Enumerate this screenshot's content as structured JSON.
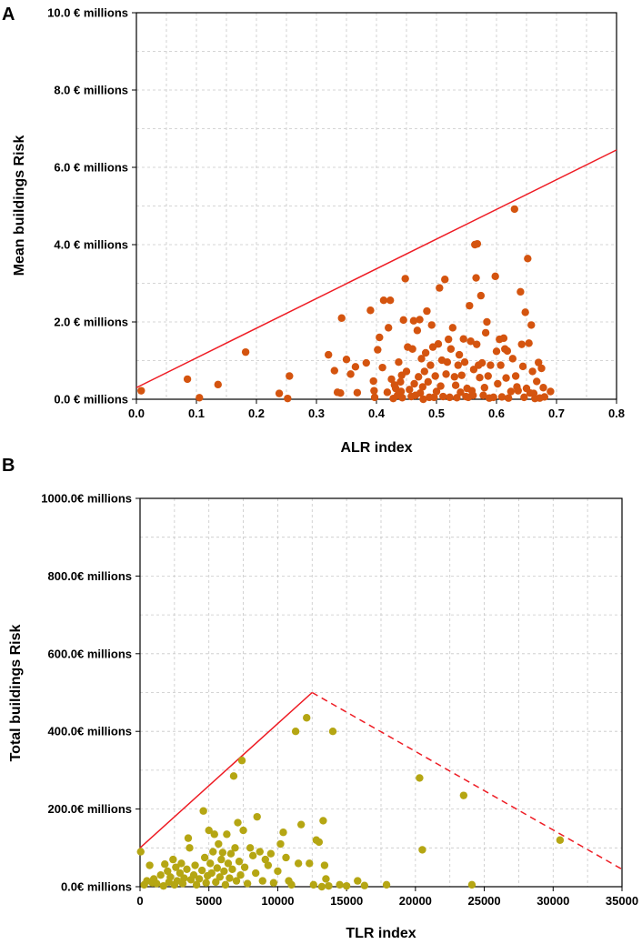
{
  "colors": {
    "seriesA": "#d4540f",
    "seriesB": "#b5a613",
    "line": "#ee1c24"
  },
  "chart_data": [
    {
      "panel": "A",
      "type": "scatter",
      "title": "",
      "xlabel": "ALR index",
      "ylabel": "Mean buildings Risk",
      "xlim": [
        0.0,
        0.8
      ],
      "ylim": [
        0.0,
        10.0
      ],
      "xticks": [
        0.0,
        0.1,
        0.2,
        0.3,
        0.4,
        0.5,
        0.6,
        0.7,
        0.8
      ],
      "xtick_labels": [
        "0.0",
        "0.1",
        "0.2",
        "0.3",
        "0.4",
        "0.5",
        "0.6",
        "0.7",
        "0.8"
      ],
      "yticks": [
        0,
        2,
        4,
        6,
        8,
        10
      ],
      "ytick_labels": [
        "0.0  € millions",
        "2.0  € millions",
        "4.0  € millions",
        "6.0  € millions",
        "8.0  € millions",
        "10.0  € millions"
      ],
      "grid": true,
      "lines": [
        {
          "name": "upper envelope",
          "style": "solid",
          "points": [
            [
              0.0,
              0.3
            ],
            [
              0.8,
              6.45
            ]
          ]
        }
      ],
      "points": [
        [
          0.008,
          0.22
        ],
        [
          0.085,
          0.52
        ],
        [
          0.105,
          0.04
        ],
        [
          0.136,
          0.38
        ],
        [
          0.182,
          1.22
        ],
        [
          0.238,
          0.15
        ],
        [
          0.252,
          0.02
        ],
        [
          0.255,
          0.6
        ],
        [
          0.32,
          1.15
        ],
        [
          0.33,
          0.74
        ],
        [
          0.335,
          0.18
        ],
        [
          0.34,
          0.16
        ],
        [
          0.342,
          2.1
        ],
        [
          0.35,
          1.03
        ],
        [
          0.357,
          0.65
        ],
        [
          0.365,
          0.84
        ],
        [
          0.368,
          0.17
        ],
        [
          0.383,
          0.94
        ],
        [
          0.39,
          2.3
        ],
        [
          0.395,
          0.47
        ],
        [
          0.396,
          0.22
        ],
        [
          0.397,
          0.05
        ],
        [
          0.402,
          1.28
        ],
        [
          0.405,
          1.6
        ],
        [
          0.41,
          0.82
        ],
        [
          0.412,
          2.56
        ],
        [
          0.418,
          0.18
        ],
        [
          0.42,
          1.85
        ],
        [
          0.423,
          2.56
        ],
        [
          0.425,
          0.52
        ],
        [
          0.428,
          0.02
        ],
        [
          0.43,
          0.37
        ],
        [
          0.432,
          0.28
        ],
        [
          0.435,
          0.1
        ],
        [
          0.437,
          0.96
        ],
        [
          0.44,
          0.45
        ],
        [
          0.441,
          0.2
        ],
        [
          0.442,
          0.62
        ],
        [
          0.443,
          0.04
        ],
        [
          0.445,
          2.05
        ],
        [
          0.448,
          3.12
        ],
        [
          0.45,
          0.72
        ],
        [
          0.452,
          1.35
        ],
        [
          0.455,
          0.25
        ],
        [
          0.458,
          0.07
        ],
        [
          0.46,
          1.3
        ],
        [
          0.462,
          2.03
        ],
        [
          0.463,
          0.4
        ],
        [
          0.465,
          0.1
        ],
        [
          0.468,
          1.78
        ],
        [
          0.47,
          0.58
        ],
        [
          0.472,
          2.06
        ],
        [
          0.473,
          0.16
        ],
        [
          0.475,
          1.05
        ],
        [
          0.477,
          0.32
        ],
        [
          0.478,
          0.0
        ],
        [
          0.48,
          0.72
        ],
        [
          0.482,
          1.2
        ],
        [
          0.484,
          2.28
        ],
        [
          0.486,
          0.45
        ],
        [
          0.488,
          0.05
        ],
        [
          0.49,
          0.88
        ],
        [
          0.492,
          1.92
        ],
        [
          0.494,
          1.35
        ],
        [
          0.496,
          0.05
        ],
        [
          0.498,
          0.6
        ],
        [
          0.5,
          0.2
        ],
        [
          0.503,
          1.43
        ],
        [
          0.505,
          2.88
        ],
        [
          0.507,
          0.34
        ],
        [
          0.509,
          1.01
        ],
        [
          0.511,
          0.07
        ],
        [
          0.514,
          3.1
        ],
        [
          0.516,
          0.65
        ],
        [
          0.518,
          0.96
        ],
        [
          0.52,
          1.55
        ],
        [
          0.522,
          0.05
        ],
        [
          0.524,
          1.3
        ],
        [
          0.527,
          1.85
        ],
        [
          0.53,
          0.58
        ],
        [
          0.532,
          0.36
        ],
        [
          0.534,
          0.04
        ],
        [
          0.536,
          0.88
        ],
        [
          0.538,
          1.15
        ],
        [
          0.54,
          0.18
        ],
        [
          0.542,
          0.62
        ],
        [
          0.545,
          1.56
        ],
        [
          0.547,
          0.96
        ],
        [
          0.549,
          0.07
        ],
        [
          0.551,
          0.28
        ],
        [
          0.553,
          0.05
        ],
        [
          0.555,
          2.42
        ],
        [
          0.557,
          1.5
        ],
        [
          0.559,
          0.22
        ],
        [
          0.561,
          0.1
        ],
        [
          0.562,
          0.77
        ],
        [
          0.564,
          4.0
        ],
        [
          0.566,
          3.14
        ],
        [
          0.567,
          1.42
        ],
        [
          0.568,
          4.02
        ],
        [
          0.57,
          0.88
        ],
        [
          0.572,
          0.56
        ],
        [
          0.574,
          2.68
        ],
        [
          0.576,
          0.94
        ],
        [
          0.578,
          0.1
        ],
        [
          0.58,
          0.3
        ],
        [
          0.582,
          1.72
        ],
        [
          0.584,
          2.0
        ],
        [
          0.586,
          0.6
        ],
        [
          0.588,
          0.03
        ],
        [
          0.59,
          0.88
        ],
        [
          0.595,
          0.05
        ],
        [
          0.598,
          3.18
        ],
        [
          0.6,
          1.24
        ],
        [
          0.602,
          0.4
        ],
        [
          0.605,
          1.55
        ],
        [
          0.607,
          0.88
        ],
        [
          0.609,
          0.06
        ],
        [
          0.612,
          1.58
        ],
        [
          0.614,
          1.3
        ],
        [
          0.616,
          0.55
        ],
        [
          0.618,
          1.25
        ],
        [
          0.62,
          0.03
        ],
        [
          0.624,
          0.2
        ],
        [
          0.627,
          1.05
        ],
        [
          0.63,
          4.92
        ],
        [
          0.632,
          0.6
        ],
        [
          0.634,
          0.32
        ],
        [
          0.636,
          0.22
        ],
        [
          0.64,
          2.78
        ],
        [
          0.642,
          1.42
        ],
        [
          0.644,
          0.85
        ],
        [
          0.646,
          0.05
        ],
        [
          0.648,
          2.25
        ],
        [
          0.65,
          0.28
        ],
        [
          0.652,
          3.64
        ],
        [
          0.654,
          1.45
        ],
        [
          0.656,
          0.16
        ],
        [
          0.658,
          1.92
        ],
        [
          0.66,
          0.72
        ],
        [
          0.662,
          0.15
        ],
        [
          0.664,
          0.02
        ],
        [
          0.667,
          0.46
        ],
        [
          0.67,
          0.95
        ],
        [
          0.672,
          0.03
        ],
        [
          0.675,
          0.8
        ],
        [
          0.678,
          0.3
        ],
        [
          0.68,
          0.06
        ],
        [
          0.69,
          0.2
        ]
      ]
    },
    {
      "panel": "B",
      "type": "scatter",
      "title": "",
      "xlabel": "TLR index",
      "ylabel": "Total buildings Risk",
      "xlim": [
        0,
        35000
      ],
      "ylim": [
        0,
        1000
      ],
      "xticks": [
        0,
        5000,
        10000,
        15000,
        20000,
        25000,
        30000,
        35000
      ],
      "xtick_labels": [
        "0",
        "5000",
        "10000",
        "15000",
        "20000",
        "25000",
        "30000",
        "35000"
      ],
      "yticks": [
        0,
        200,
        400,
        600,
        800,
        1000
      ],
      "ytick_labels": [
        "0.0€ millions",
        "200.0€ millions",
        "400.0€ millions",
        "600.0€ millions",
        "800.0€ millions",
        "1000.0€ millions"
      ],
      "grid": true,
      "lines": [
        {
          "name": "upper envelope (rising)",
          "style": "solid",
          "points": [
            [
              0,
              100
            ],
            [
              12500,
              500
            ]
          ]
        },
        {
          "name": "upper envelope (falling)",
          "style": "dashed",
          "points": [
            [
              12500,
              500
            ],
            [
              35000,
              45
            ]
          ]
        }
      ],
      "points": [
        [
          50,
          90
        ],
        [
          300,
          5
        ],
        [
          500,
          15
        ],
        [
          700,
          55
        ],
        [
          900,
          10
        ],
        [
          1000,
          20
        ],
        [
          1200,
          8
        ],
        [
          1500,
          30
        ],
        [
          1700,
          2
        ],
        [
          1800,
          58
        ],
        [
          2000,
          40
        ],
        [
          2100,
          12
        ],
        [
          2200,
          25
        ],
        [
          2400,
          70
        ],
        [
          2500,
          5
        ],
        [
          2600,
          50
        ],
        [
          2700,
          15
        ],
        [
          2900,
          35
        ],
        [
          3000,
          60
        ],
        [
          3100,
          8
        ],
        [
          3200,
          22
        ],
        [
          3400,
          45
        ],
        [
          3500,
          125
        ],
        [
          3600,
          100
        ],
        [
          3700,
          18
        ],
        [
          3900,
          30
        ],
        [
          4000,
          55
        ],
        [
          4100,
          5
        ],
        [
          4300,
          20
        ],
        [
          4500,
          42
        ],
        [
          4600,
          195
        ],
        [
          4700,
          75
        ],
        [
          4800,
          10
        ],
        [
          4900,
          28
        ],
        [
          5000,
          145
        ],
        [
          5100,
          60
        ],
        [
          5200,
          35
        ],
        [
          5300,
          90
        ],
        [
          5400,
          135
        ],
        [
          5500,
          12
        ],
        [
          5600,
          48
        ],
        [
          5700,
          110
        ],
        [
          5800,
          25
        ],
        [
          5900,
          70
        ],
        [
          6000,
          88
        ],
        [
          6100,
          40
        ],
        [
          6200,
          5
        ],
        [
          6300,
          135
        ],
        [
          6400,
          60
        ],
        [
          6500,
          22
        ],
        [
          6600,
          85
        ],
        [
          6700,
          45
        ],
        [
          6800,
          285
        ],
        [
          6900,
          100
        ],
        [
          7000,
          15
        ],
        [
          7100,
          165
        ],
        [
          7200,
          65
        ],
        [
          7300,
          30
        ],
        [
          7400,
          325
        ],
        [
          7500,
          145
        ],
        [
          7600,
          50
        ],
        [
          7800,
          8
        ],
        [
          8000,
          100
        ],
        [
          8200,
          80
        ],
        [
          8400,
          35
        ],
        [
          8500,
          180
        ],
        [
          8700,
          90
        ],
        [
          8900,
          15
        ],
        [
          9100,
          70
        ],
        [
          9300,
          55
        ],
        [
          9500,
          85
        ],
        [
          9700,
          10
        ],
        [
          10000,
          40
        ],
        [
          10200,
          110
        ],
        [
          10400,
          140
        ],
        [
          10600,
          75
        ],
        [
          10800,
          15
        ],
        [
          11000,
          5
        ],
        [
          11300,
          400
        ],
        [
          11500,
          60
        ],
        [
          11700,
          160
        ],
        [
          12100,
          435
        ],
        [
          12300,
          60
        ],
        [
          12600,
          5
        ],
        [
          12800,
          120
        ],
        [
          13000,
          115
        ],
        [
          13200,
          0
        ],
        [
          13300,
          170
        ],
        [
          13400,
          55
        ],
        [
          13500,
          20
        ],
        [
          13700,
          2
        ],
        [
          14000,
          400
        ],
        [
          14500,
          5
        ],
        [
          15000,
          2
        ],
        [
          15800,
          15
        ],
        [
          16300,
          3
        ],
        [
          17900,
          5
        ],
        [
          20300,
          280
        ],
        [
          20500,
          95
        ],
        [
          23500,
          235
        ],
        [
          24100,
          5
        ],
        [
          30500,
          120
        ]
      ]
    }
  ]
}
